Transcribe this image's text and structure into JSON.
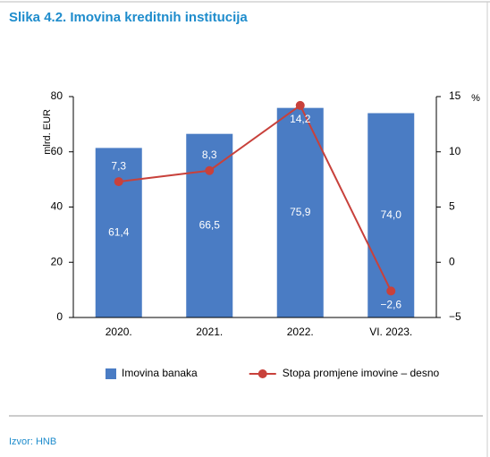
{
  "chart_data": {
    "type": "bar_line",
    "title": "Slika 4.2. Imovina kreditnih institucija",
    "categories": [
      "2020.",
      "2021.",
      "2022.",
      "VI. 2023."
    ],
    "series": [
      {
        "name": "Imovina banaka",
        "color": "#4a7cc4",
        "type": "bar",
        "axis": "y",
        "values": [
          61.4,
          66.5,
          75.9,
          74.0
        ],
        "value_labels": [
          "61,4",
          "66,5",
          "75,9",
          "74,0"
        ]
      },
      {
        "name": "Stopa promjene imovine – desno",
        "color": "#c8413b",
        "type": "line",
        "axis": "y2",
        "values": [
          7.3,
          8.3,
          14.2,
          -2.6
        ],
        "value_labels": [
          "7,3",
          "8,3",
          "14,2",
          "−2,6"
        ]
      }
    ],
    "y_label": "mlrd. EUR",
    "y2_label": "%",
    "ylim": [
      0,
      80
    ],
    "yticks": [
      0,
      20,
      40,
      60,
      80
    ],
    "y2lim": [
      -5,
      15
    ],
    "y2ticks": [
      {
        "value": -5,
        "label": "−5"
      },
      0,
      5,
      10,
      15
    ],
    "legend": "bottom"
  },
  "source": "Izvor: HNB"
}
